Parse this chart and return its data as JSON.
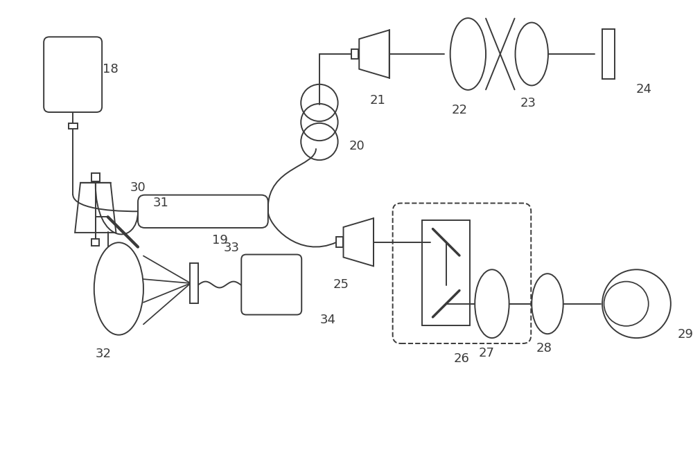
{
  "bg": "#ffffff",
  "lc": "#3a3a3a",
  "lw": 1.4,
  "fs": 13
}
